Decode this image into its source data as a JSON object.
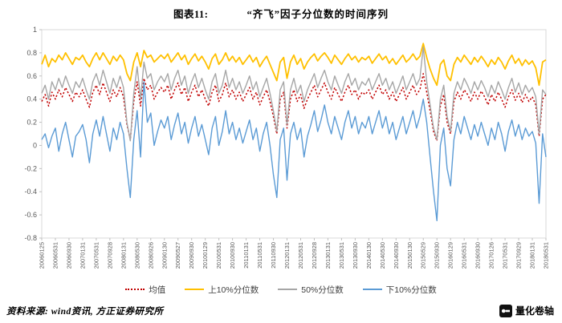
{
  "header": {
    "figure_label": "图表11:",
    "title": "“齐飞”因子分位数的时间序列"
  },
  "footer": {
    "source": "资料来源: wind资讯, 方正证券研究所",
    "brand": "量化卷轴"
  },
  "chart_data": {
    "type": "line",
    "title": "“齐飞”因子分位数的时间序列",
    "ylim": [
      -0.8,
      1
    ],
    "yticks": [
      1,
      0.8,
      0.6,
      0.4,
      0.2,
      0,
      -0.2,
      -0.4,
      -0.6,
      -0.8
    ],
    "grid": false,
    "legend_position": "bottom",
    "x_tick_every": 4,
    "x_tick_labels": [
      "20060125",
      "20060531",
      "20060930",
      "20070131",
      "20070531",
      "20070928",
      "20080131",
      "20080530",
      "20080926",
      "20090130",
      "20090527",
      "20090930",
      "20100129",
      "20100531",
      "20100930",
      "20110131",
      "20110531",
      "20110930",
      "20120131",
      "20120531",
      "20120928",
      "20130131",
      "20130531",
      "20130930",
      "20140130",
      "20140530",
      "20140930",
      "20150130",
      "20150529",
      "20150930",
      "20160129",
      "20160531",
      "20160930",
      "20170126",
      "20170531",
      "20170929",
      "20180131",
      "20180531"
    ],
    "series": [
      {
        "id": "mean",
        "name": "均值",
        "color": "#C00000",
        "line_style": "dotted",
        "width": 1.5,
        "values": [
          0.38,
          0.44,
          0.34,
          0.46,
          0.4,
          0.48,
          0.42,
          0.5,
          0.44,
          0.38,
          0.46,
          0.42,
          0.48,
          0.4,
          0.33,
          0.46,
          0.52,
          0.44,
          0.54,
          0.46,
          0.38,
          0.48,
          0.42,
          0.5,
          0.42,
          0.18,
          0.05,
          0.38,
          0.55,
          0.34,
          0.58,
          0.48,
          0.52,
          0.4,
          0.46,
          0.5,
          0.46,
          0.52,
          0.4,
          0.48,
          0.54,
          0.44,
          0.5,
          0.38,
          0.46,
          0.52,
          0.42,
          0.48,
          0.4,
          0.34,
          0.46,
          0.52,
          0.38,
          0.44,
          0.54,
          0.42,
          0.48,
          0.4,
          0.46,
          0.38,
          0.44,
          0.5,
          0.4,
          0.46,
          0.35,
          0.42,
          0.48,
          0.38,
          0.25,
          0.1,
          0.4,
          0.46,
          0.15,
          0.4,
          0.48,
          0.38,
          0.44,
          0.32,
          0.4,
          0.46,
          0.52,
          0.42,
          0.48,
          0.54,
          0.46,
          0.4,
          0.5,
          0.44,
          0.38,
          0.46,
          0.52,
          0.44,
          0.48,
          0.4,
          0.46,
          0.44,
          0.48,
          0.4,
          0.46,
          0.52,
          0.44,
          0.48,
          0.4,
          0.46,
          0.38,
          0.44,
          0.5,
          0.4,
          0.46,
          0.52,
          0.44,
          0.48,
          0.62,
          0.46,
          0.3,
          0.12,
          0.04,
          0.34,
          0.44,
          0.2,
          0.1,
          0.38,
          0.46,
          0.4,
          0.48,
          0.44,
          0.38,
          0.46,
          0.4,
          0.47,
          0.42,
          0.35,
          0.44,
          0.38,
          0.46,
          0.4,
          0.33,
          0.42,
          0.48,
          0.39,
          0.45,
          0.37,
          0.44,
          0.38,
          0.42,
          0.35,
          0.08,
          0.4,
          0.44
        ]
      },
      {
        "id": "p90",
        "name": "上10%分位数",
        "color": "#FFC000",
        "line_style": "solid",
        "width": 1.8,
        "values": [
          0.7,
          0.78,
          0.68,
          0.75,
          0.72,
          0.78,
          0.74,
          0.8,
          0.75,
          0.7,
          0.76,
          0.74,
          0.78,
          0.72,
          0.68,
          0.75,
          0.8,
          0.74,
          0.8,
          0.75,
          0.7,
          0.77,
          0.73,
          0.78,
          0.74,
          0.62,
          0.56,
          0.72,
          0.8,
          0.68,
          0.82,
          0.76,
          0.78,
          0.72,
          0.75,
          0.78,
          0.75,
          0.79,
          0.72,
          0.76,
          0.8,
          0.74,
          0.78,
          0.7,
          0.75,
          0.79,
          0.73,
          0.77,
          0.72,
          0.66,
          0.75,
          0.79,
          0.7,
          0.74,
          0.8,
          0.73,
          0.77,
          0.72,
          0.76,
          0.7,
          0.74,
          0.78,
          0.72,
          0.76,
          0.68,
          0.73,
          0.77,
          0.7,
          0.63,
          0.56,
          0.72,
          0.76,
          0.58,
          0.72,
          0.78,
          0.7,
          0.75,
          0.66,
          0.72,
          0.76,
          0.79,
          0.73,
          0.77,
          0.8,
          0.76,
          0.71,
          0.78,
          0.74,
          0.7,
          0.75,
          0.79,
          0.74,
          0.77,
          0.72,
          0.76,
          0.74,
          0.77,
          0.71,
          0.75,
          0.79,
          0.74,
          0.77,
          0.71,
          0.75,
          0.7,
          0.74,
          0.78,
          0.72,
          0.75,
          0.79,
          0.74,
          0.77,
          0.88,
          0.76,
          0.66,
          0.58,
          0.52,
          0.7,
          0.74,
          0.6,
          0.56,
          0.7,
          0.76,
          0.72,
          0.78,
          0.74,
          0.7,
          0.76,
          0.72,
          0.77,
          0.73,
          0.68,
          0.74,
          0.7,
          0.76,
          0.72,
          0.66,
          0.73,
          0.78,
          0.71,
          0.75,
          0.69,
          0.74,
          0.7,
          0.73,
          0.67,
          0.52,
          0.72,
          0.74
        ]
      },
      {
        "id": "p50",
        "name": "50%分位数",
        "color": "#A6A6A6",
        "line_style": "solid",
        "width": 1.4,
        "values": [
          0.45,
          0.52,
          0.4,
          0.55,
          0.48,
          0.58,
          0.5,
          0.6,
          0.52,
          0.45,
          0.55,
          0.5,
          0.58,
          0.48,
          0.4,
          0.55,
          0.62,
          0.52,
          0.65,
          0.55,
          0.45,
          0.58,
          0.5,
          0.6,
          0.5,
          0.2,
          0.04,
          0.45,
          0.68,
          0.4,
          0.72,
          0.58,
          0.62,
          0.48,
          0.55,
          0.6,
          0.55,
          0.62,
          0.48,
          0.58,
          0.65,
          0.52,
          0.6,
          0.45,
          0.55,
          0.62,
          0.5,
          0.58,
          0.48,
          0.4,
          0.55,
          0.62,
          0.45,
          0.52,
          0.65,
          0.5,
          0.58,
          0.48,
          0.55,
          0.45,
          0.52,
          0.6,
          0.48,
          0.55,
          0.42,
          0.5,
          0.58,
          0.45,
          0.3,
          0.12,
          0.48,
          0.55,
          0.18,
          0.48,
          0.58,
          0.45,
          0.52,
          0.38,
          0.48,
          0.55,
          0.62,
          0.5,
          0.58,
          0.65,
          0.55,
          0.48,
          0.6,
          0.52,
          0.45,
          0.55,
          0.62,
          0.52,
          0.58,
          0.48,
          0.55,
          0.52,
          0.58,
          0.48,
          0.55,
          0.62,
          0.52,
          0.58,
          0.48,
          0.55,
          0.45,
          0.52,
          0.6,
          0.48,
          0.55,
          0.62,
          0.52,
          0.58,
          0.85,
          0.55,
          0.35,
          0.15,
          0.05,
          0.4,
          0.52,
          0.25,
          0.12,
          0.45,
          0.55,
          0.48,
          0.58,
          0.52,
          0.45,
          0.55,
          0.48,
          0.56,
          0.5,
          0.42,
          0.52,
          0.45,
          0.55,
          0.48,
          0.4,
          0.5,
          0.58,
          0.46,
          0.54,
          0.44,
          0.52,
          0.46,
          0.5,
          0.42,
          0.1,
          0.48,
          0.44
        ]
      },
      {
        "id": "p10",
        "name": "下10%分位数",
        "color": "#5B9BD5",
        "line_style": "solid",
        "width": 1.4,
        "values": [
          0.05,
          0.1,
          -0.02,
          0.08,
          0.15,
          -0.05,
          0.1,
          0.2,
          0.05,
          -0.1,
          0.08,
          0.12,
          0.18,
          0.05,
          -0.15,
          0.1,
          0.22,
          0.08,
          0.25,
          0.1,
          -0.05,
          0.15,
          0.05,
          0.2,
          0.1,
          -0.2,
          -0.45,
          0.05,
          0.3,
          -0.1,
          0.55,
          0.2,
          0.28,
          0,
          0.12,
          0.22,
          0.15,
          0.25,
          0.05,
          0.18,
          0.28,
          0.1,
          0.2,
          0.02,
          0.15,
          0.25,
          0.08,
          0.18,
          0.05,
          -0.08,
          0.15,
          0.25,
          0,
          0.12,
          0.3,
          0.1,
          0.2,
          0.05,
          0.15,
          0.02,
          0.12,
          0.22,
          0.05,
          0.15,
          -0.05,
          0.1,
          0.2,
          0,
          -0.25,
          -0.45,
          0.05,
          0.15,
          -0.3,
          0.1,
          0.2,
          0.05,
          0.15,
          -0.1,
          0.08,
          0.18,
          0.3,
          0.12,
          0.22,
          0.35,
          0.2,
          0.1,
          0.25,
          0.15,
          0.05,
          0.2,
          0.3,
          0.15,
          0.25,
          0.1,
          0.2,
          0.15,
          0.25,
          0.1,
          0.2,
          0.3,
          0.15,
          0.25,
          0.1,
          0.2,
          0.05,
          0.15,
          0.25,
          0.1,
          0.2,
          0.3,
          0.15,
          0.25,
          0.4,
          0.2,
          -0.1,
          -0.4,
          -0.65,
          0,
          0.15,
          -0.2,
          -0.35,
          0.05,
          0.2,
          0.1,
          0.25,
          0.15,
          0.05,
          0.18,
          0.08,
          0.2,
          0.1,
          0,
          0.15,
          0.05,
          0.2,
          0.1,
          -0.05,
          0.12,
          0.22,
          0.08,
          0.18,
          0.05,
          0.15,
          0.08,
          0.12,
          0.02,
          -0.5,
          0.1,
          -0.1
        ]
      }
    ]
  }
}
